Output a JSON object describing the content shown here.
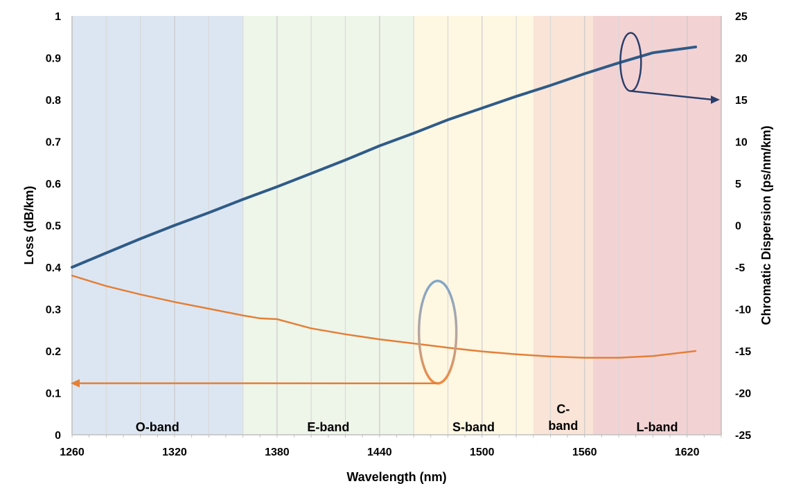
{
  "chart_data": {
    "type": "line",
    "xlabel": "Wavelength (nm)",
    "ylabel_left": "Loss (dB/km)",
    "ylabel_right": "Chromatic Dispersion (ps/nm/km)",
    "xlim": [
      1260,
      1640
    ],
    "ylim_left": [
      0,
      1
    ],
    "ylim_right": [
      -25,
      25
    ],
    "x_ticks": [
      1260,
      1320,
      1380,
      1440,
      1500,
      1560,
      1620
    ],
    "y_left_ticks": [
      0,
      0.1,
      0.2,
      0.3,
      0.4,
      0.5,
      0.6,
      0.7,
      0.8,
      0.9,
      1
    ],
    "y_right_ticks": [
      -25,
      -20,
      -15,
      -10,
      -5,
      0,
      5,
      10,
      15,
      20,
      25
    ],
    "grid": "vertical",
    "bands": [
      {
        "label": "O-band",
        "start": 1260,
        "end": 1360,
        "color": "#dce6f2"
      },
      {
        "label": "E-band",
        "start": 1360,
        "end": 1460,
        "color": "#eef5e9"
      },
      {
        "label": "S-band",
        "start": 1460,
        "end": 1530,
        "color": "#fef7e2"
      },
      {
        "label": "C-\nband",
        "start": 1530,
        "end": 1565,
        "color": "#f9e4d7"
      },
      {
        "label": "L-band",
        "start": 1565,
        "end": 1640,
        "color": "#f3d2d4"
      }
    ],
    "series": [
      {
        "axis": "right",
        "color": "#2f5b87",
        "x": [
          1260,
          1280,
          1300,
          1320,
          1340,
          1360,
          1380,
          1400,
          1420,
          1440,
          1460,
          1480,
          1500,
          1520,
          1540,
          1560,
          1580,
          1600,
          1625
        ],
        "y": [
          -5,
          -3.3,
          -1.6,
          0,
          1.5,
          3.1,
          4.6,
          6.2,
          7.8,
          9.5,
          11.0,
          12.6,
          14.0,
          15.4,
          16.7,
          18.1,
          19.4,
          20.6,
          21.3
        ]
      },
      {
        "axis": "left",
        "color": "#e47f37",
        "x": [
          1260,
          1280,
          1300,
          1320,
          1340,
          1360,
          1370,
          1380,
          1390,
          1400,
          1420,
          1440,
          1460,
          1480,
          1500,
          1520,
          1540,
          1560,
          1580,
          1600,
          1625
        ],
        "y": [
          0.38,
          0.355,
          0.335,
          0.317,
          0.301,
          0.285,
          0.278,
          0.276,
          0.265,
          0.254,
          0.24,
          0.228,
          0.218,
          0.208,
          0.199,
          0.192,
          0.187,
          0.184,
          0.184,
          0.188,
          0.2
        ]
      }
    ],
    "annotations": [
      {
        "shape": "ellipse",
        "series": "dispersion",
        "x": 1587,
        "y_right": 19.5,
        "arrow_to": "right-axis",
        "arrow_end_y_right": 15
      },
      {
        "shape": "ellipse",
        "series": "loss",
        "x": 1474,
        "y_left": 0.245,
        "arrow_to": "left-axis",
        "arrow_end_y_left": 0.123
      }
    ]
  }
}
